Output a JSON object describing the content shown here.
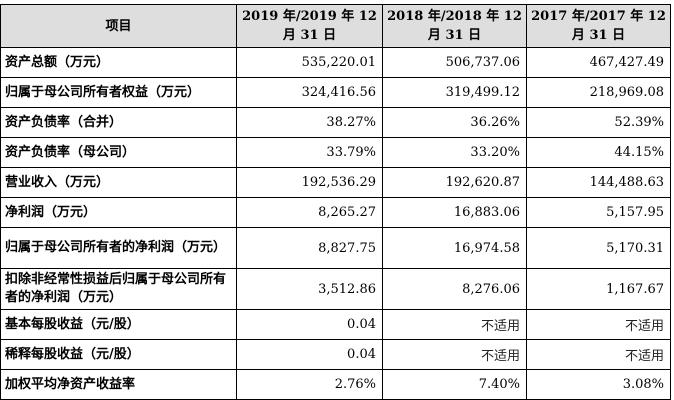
{
  "table": {
    "headers": {
      "item": "项目",
      "y2019": "2019 年/2019 年 12 月 31 日",
      "y2018": "2018 年/2018 年 12 月 31 日",
      "y2017": "2017 年/2017 年 12 月 31 日"
    },
    "rows": [
      {
        "label": "资产总额（万元）",
        "v2019": "535,220.01",
        "v2018": "506,737.06",
        "v2017": "467,427.49"
      },
      {
        "label": "归属于母公司所有者权益（万元）",
        "v2019": "324,416.56",
        "v2018": "319,499.12",
        "v2017": "218,969.08"
      },
      {
        "label": "资产负债率（合并）",
        "v2019": "38.27%",
        "v2018": "36.26%",
        "v2017": "52.39%"
      },
      {
        "label": "资产负债率（母公司）",
        "v2019": "33.79%",
        "v2018": "33.20%",
        "v2017": "44.15%"
      },
      {
        "label": "营业收入（万元）",
        "v2019": "192,536.29",
        "v2018": "192,620.87",
        "v2017": "144,488.63"
      },
      {
        "label": "净利润（万元）",
        "v2019": "8,265.27",
        "v2018": "16,883.06",
        "v2017": "5,157.95"
      },
      {
        "label": "归属于母公司所有者的净利润（万元）",
        "v2019": "8,827.75",
        "v2018": "16,974.58",
        "v2017": "5,170.31"
      },
      {
        "label": "扣除非经常性损益后归属于母公司所有者的净利润（万元）",
        "v2019": "3,512.86",
        "v2018": "8,276.06",
        "v2017": "1,167.67"
      },
      {
        "label": "基本每股收益（元/股）",
        "v2019": "0.04",
        "v2018": "不适用",
        "v2017": "不适用"
      },
      {
        "label": "稀释每股收益（元/股）",
        "v2019": "0.04",
        "v2018": "不适用",
        "v2017": "不适用"
      },
      {
        "label": "加权平均净资产收益率",
        "v2019": "2.76%",
        "v2018": "7.40%",
        "v2017": "3.08%"
      }
    ]
  }
}
